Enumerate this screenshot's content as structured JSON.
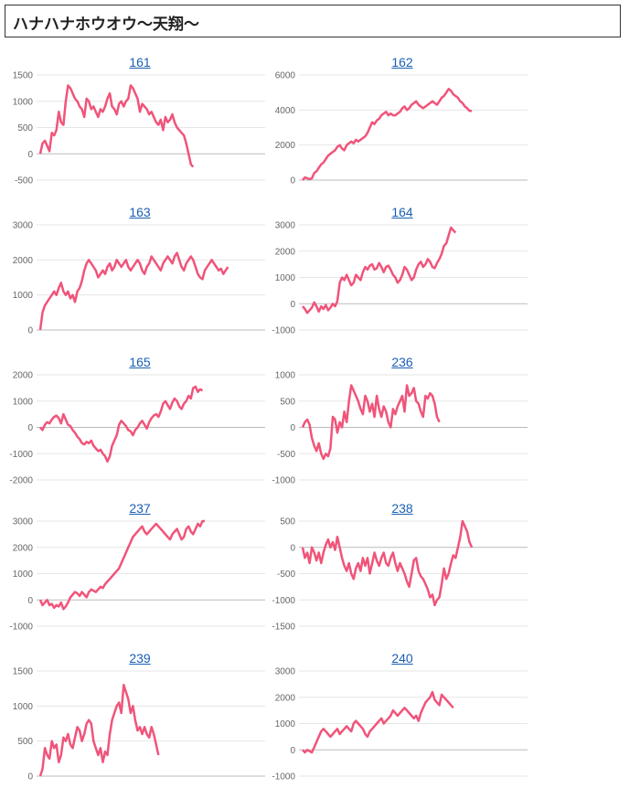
{
  "header": {
    "title": "ハナハナホウオウ〜天翔〜"
  },
  "style": {
    "line_color": "#f0547a",
    "grid_color": "#e6e6e6",
    "zero_color": "#bbbbbb"
  },
  "chart_data": [
    {
      "type": "line",
      "title": "161",
      "ylim": [
        -500,
        1500
      ],
      "ticks": [
        1500,
        1000,
        500,
        0,
        -500
      ],
      "values": [
        0,
        200,
        250,
        150,
        50,
        400,
        350,
        450,
        800,
        600,
        550,
        1000,
        1300,
        1250,
        1150,
        1050,
        1000,
        900,
        850,
        700,
        1050,
        1000,
        850,
        900,
        800,
        700,
        850,
        800,
        900,
        1050,
        1150,
        900,
        850,
        750,
        950,
        1000,
        900,
        1000,
        1050,
        1300,
        1250,
        1150,
        1050,
        800,
        950,
        900,
        850,
        750,
        800,
        700,
        600,
        550,
        650,
        450,
        700,
        600,
        650,
        750,
        600,
        500,
        450,
        400,
        350,
        200,
        0,
        -200,
        -250
      ]
    },
    {
      "type": "line",
      "title": "162",
      "ylim": [
        0,
        6000
      ],
      "ticks": [
        6000,
        4000,
        2000,
        0
      ],
      "values": [
        0,
        150,
        100,
        50,
        100,
        400,
        500,
        700,
        900,
        1000,
        1200,
        1400,
        1500,
        1600,
        1700,
        1900,
        2000,
        1800,
        1700,
        2000,
        2100,
        2200,
        2100,
        2300,
        2200,
        2300,
        2400,
        2500,
        2700,
        3000,
        3300,
        3200,
        3400,
        3500,
        3700,
        3800,
        3900,
        3700,
        3800,
        3700,
        3700,
        3800,
        3900,
        4100,
        4200,
        4000,
        4100,
        4300,
        4400,
        4500,
        4300,
        4200,
        4100,
        4200,
        4300,
        4400,
        4500,
        4400,
        4300,
        4500,
        4700,
        4800,
        5000,
        5200,
        5100,
        4900,
        4800,
        4700,
        4500,
        4400,
        4200,
        4100,
        3950,
        3950
      ]
    },
    {
      "type": "line",
      "title": "163",
      "ylim": [
        0,
        3000
      ],
      "ticks": [
        3000,
        2000,
        1000,
        0
      ],
      "values": [
        0,
        500,
        700,
        800,
        900,
        1000,
        1100,
        1000,
        1200,
        1350,
        1100,
        1000,
        1100,
        900,
        1000,
        800,
        1100,
        1200,
        1400,
        1700,
        1900,
        2000,
        1900,
        1800,
        1700,
        1500,
        1600,
        1700,
        1600,
        1800,
        1900,
        1700,
        1800,
        2000,
        1900,
        1800,
        1900,
        2000,
        1800,
        1700,
        1800,
        1900,
        2000,
        1900,
        1700,
        1600,
        1800,
        1900,
        2100,
        2000,
        1900,
        1800,
        1700,
        1900,
        2000,
        2100,
        2000,
        1900,
        2100,
        2200,
        2000,
        1800,
        1700,
        1900,
        2000,
        2100,
        2000,
        1800,
        1600,
        1500,
        1450,
        1700,
        1800,
        1900,
        2000,
        1900,
        1800,
        1700,
        1750,
        1600,
        1700,
        1800
      ]
    },
    {
      "type": "line",
      "title": "164",
      "ylim": [
        -1000,
        3000
      ],
      "ticks": [
        3000,
        2000,
        1000,
        0,
        -1000
      ],
      "values": [
        -100,
        -200,
        -350,
        -250,
        -150,
        50,
        -100,
        -300,
        -100,
        -200,
        -50,
        -250,
        -150,
        0,
        -100,
        100,
        800,
        1000,
        900,
        1100,
        900,
        700,
        800,
        1100,
        1000,
        900,
        1200,
        1400,
        1300,
        1450,
        1500,
        1300,
        1350,
        1550,
        1400,
        1200,
        1400,
        1450,
        1300,
        1100,
        1000,
        800,
        900,
        1100,
        1400,
        1300,
        1100,
        900,
        1000,
        1300,
        1500,
        1600,
        1400,
        1500,
        1700,
        1600,
        1400,
        1350,
        1550,
        1700,
        1900,
        2200,
        2300,
        2600,
        2900,
        2800,
        2700
      ]
    },
    {
      "type": "line",
      "title": "165",
      "ylim": [
        -2000,
        2000
      ],
      "ticks": [
        2000,
        1000,
        0,
        -1000,
        -2000
      ],
      "values": [
        0,
        -100,
        100,
        200,
        150,
        300,
        400,
        450,
        350,
        150,
        500,
        300,
        100,
        50,
        -100,
        -200,
        -350,
        -450,
        -600,
        -650,
        -550,
        -600,
        -500,
        -700,
        -800,
        -900,
        -850,
        -1000,
        -1100,
        -1300,
        -1100,
        -700,
        -500,
        -300,
        100,
        250,
        150,
        50,
        -100,
        -150,
        -300,
        -100,
        0,
        150,
        250,
        100,
        -50,
        200,
        350,
        450,
        500,
        400,
        600,
        900,
        1000,
        850,
        700,
        950,
        1100,
        1000,
        800,
        700,
        900,
        1000,
        1200,
        1100,
        1500,
        1550,
        1350,
        1450,
        1400
      ]
    },
    {
      "type": "line",
      "title": "236",
      "ylim": [
        -1000,
        1000
      ],
      "ticks": [
        1000,
        500,
        0,
        -500,
        -1000
      ],
      "values": [
        0,
        100,
        150,
        50,
        -200,
        -350,
        -450,
        -300,
        -500,
        -600,
        -500,
        -550,
        -400,
        200,
        150,
        -100,
        100,
        0,
        300,
        100,
        500,
        800,
        700,
        600,
        500,
        350,
        250,
        600,
        500,
        300,
        450,
        200,
        600,
        350,
        200,
        400,
        300,
        100,
        0,
        350,
        250,
        400,
        500,
        600,
        300,
        800,
        600,
        650,
        750,
        500,
        450,
        300,
        200,
        600,
        550,
        650,
        600,
        450,
        200,
        100
      ]
    },
    {
      "type": "line",
      "title": "237",
      "ylim": [
        -1000,
        3000
      ],
      "ticks": [
        3000,
        2000,
        1000,
        0,
        -1000
      ],
      "values": [
        0,
        -200,
        -100,
        0,
        -200,
        -150,
        -300,
        -200,
        -250,
        -100,
        -350,
        -250,
        -100,
        100,
        200,
        300,
        250,
        150,
        300,
        200,
        100,
        300,
        400,
        350,
        300,
        400,
        500,
        450,
        600,
        700,
        800,
        900,
        1000,
        1100,
        1200,
        1400,
        1600,
        1800,
        2000,
        2200,
        2400,
        2500,
        2600,
        2700,
        2800,
        2600,
        2500,
        2600,
        2700,
        2800,
        2900,
        2800,
        2700,
        2600,
        2500,
        2400,
        2300,
        2500,
        2600,
        2700,
        2500,
        2300,
        2400,
        2700,
        2800,
        2600,
        2500,
        2700,
        2900,
        2800,
        3000,
        3000
      ]
    },
    {
      "type": "line",
      "title": "238",
      "ylim": [
        -1500,
        500
      ],
      "ticks": [
        500,
        0,
        -500,
        -1000,
        -1500
      ],
      "values": [
        0,
        -200,
        -100,
        -300,
        0,
        -100,
        -250,
        -100,
        -300,
        -100,
        50,
        150,
        0,
        100,
        -50,
        200,
        0,
        -200,
        -350,
        -450,
        -300,
        -500,
        -600,
        -400,
        -300,
        -450,
        -200,
        -350,
        -200,
        -500,
        -300,
        -100,
        -250,
        -350,
        -200,
        -100,
        -300,
        -350,
        -200,
        -100,
        -300,
        -450,
        -300,
        -400,
        -500,
        -650,
        -750,
        -500,
        -250,
        -200,
        -450,
        -550,
        -600,
        -700,
        -800,
        -950,
        -900,
        -1100,
        -1000,
        -950,
        -700,
        -400,
        -600,
        -500,
        -300,
        -150,
        -200,
        0,
        200,
        500,
        400,
        300,
        100,
        0
      ]
    },
    {
      "type": "line",
      "title": "239",
      "ylim": [
        0,
        1500
      ],
      "ticks": [
        1500,
        1000,
        500,
        0
      ],
      "values": [
        0,
        100,
        400,
        300,
        250,
        500,
        400,
        450,
        200,
        300,
        550,
        500,
        600,
        450,
        400,
        550,
        700,
        650,
        500,
        600,
        750,
        800,
        750,
        500,
        400,
        300,
        400,
        200,
        350,
        300,
        600,
        800,
        900,
        1000,
        1050,
        900,
        1300,
        1200,
        1100,
        900,
        1000,
        800,
        650,
        700,
        600,
        700,
        600,
        550,
        700,
        600,
        450,
        300
      ]
    },
    {
      "type": "line",
      "title": "240",
      "ylim": [
        -1000,
        3000
      ],
      "ticks": [
        3000,
        2000,
        1000,
        0,
        -1000
      ],
      "values": [
        0,
        -100,
        0,
        -50,
        -100,
        100,
        300,
        500,
        700,
        800,
        700,
        600,
        500,
        600,
        700,
        800,
        600,
        700,
        800,
        900,
        800,
        700,
        1000,
        1100,
        1000,
        900,
        800,
        600,
        500,
        700,
        800,
        900,
        1000,
        1100,
        1200,
        1000,
        1100,
        1200,
        1300,
        1500,
        1400,
        1300,
        1400,
        1500,
        1600,
        1500,
        1400,
        1300,
        1200,
        1300,
        1100,
        1400,
        1600,
        1800,
        1900,
        2000,
        2200,
        1900,
        1800,
        1700,
        2100,
        2000,
        1900,
        1800,
        1700,
        1600
      ]
    }
  ]
}
